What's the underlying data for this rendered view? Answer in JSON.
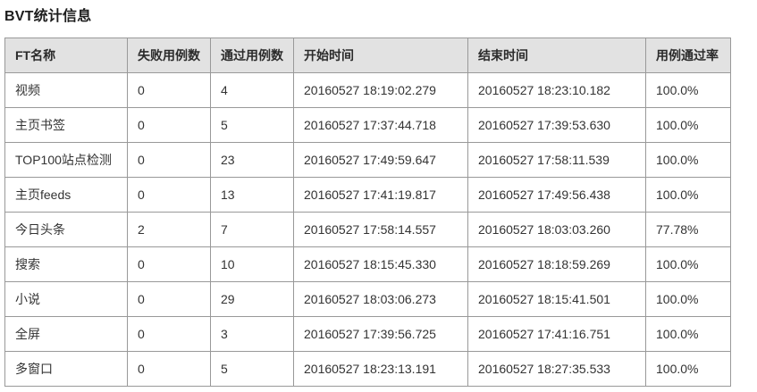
{
  "page": {
    "title": "BVT统计信息"
  },
  "table": {
    "headers": [
      "FT名称",
      "失败用例数",
      "通过用例数",
      "开始时间",
      "结束时间",
      "用例通过率"
    ],
    "rows": [
      [
        "视频",
        "0",
        "4",
        "20160527 18:19:02.279",
        "20160527 18:23:10.182",
        "100.0%"
      ],
      [
        "主页书签",
        "0",
        "5",
        "20160527 17:37:44.718",
        "20160527 17:39:53.630",
        "100.0%"
      ],
      [
        "TOP100站点检测",
        "0",
        "23",
        "20160527 17:49:59.647",
        "20160527 17:58:11.539",
        "100.0%"
      ],
      [
        "主页feeds",
        "0",
        "13",
        "20160527 17:41:19.817",
        "20160527 17:49:56.438",
        "100.0%"
      ],
      [
        "今日头条",
        "2",
        "7",
        "20160527 17:58:14.557",
        "20160527 18:03:03.260",
        "77.78%"
      ],
      [
        "搜索",
        "0",
        "10",
        "20160527 18:15:45.330",
        "20160527 18:18:59.269",
        "100.0%"
      ],
      [
        "小说",
        "0",
        "29",
        "20160527 18:03:06.273",
        "20160527 18:15:41.501",
        "100.0%"
      ],
      [
        "全屏",
        "0",
        "3",
        "20160527 17:39:56.725",
        "20160527 17:41:16.751",
        "100.0%"
      ],
      [
        "多窗口",
        "0",
        "5",
        "20160527 18:23:13.191",
        "20160527 18:27:35.533",
        "100.0%"
      ]
    ],
    "colors": {
      "header_bg": "#e2e2e2",
      "border": "#999999",
      "text": "#333333"
    }
  }
}
